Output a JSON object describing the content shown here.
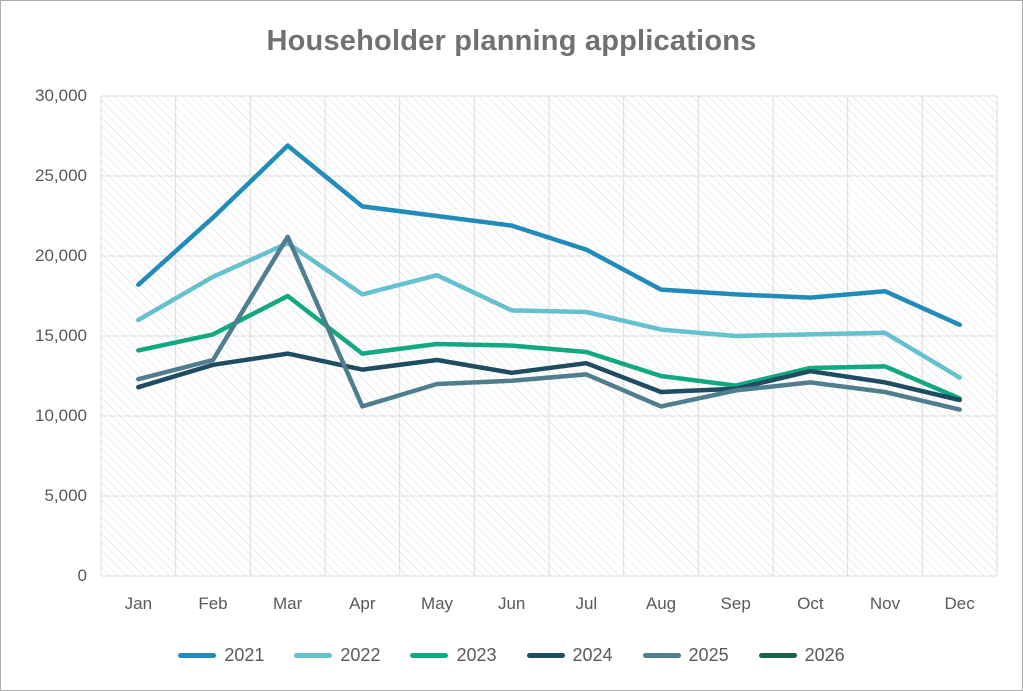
{
  "chart_data": {
    "type": "line",
    "title": "Householder planning applications",
    "categories": [
      "Jan",
      "Feb",
      "Mar",
      "Apr",
      "May",
      "Jun",
      "Jul",
      "Aug",
      "Sep",
      "Oct",
      "Nov",
      "Dec"
    ],
    "series": [
      {
        "name": "2021",
        "color": "#218CBA",
        "values": [
          18200,
          22400,
          26900,
          23100,
          22500,
          21900,
          20400,
          17900,
          17600,
          17400,
          17800,
          15700
        ]
      },
      {
        "name": "2022",
        "color": "#65C1CF",
        "values": [
          16000,
          18700,
          20800,
          17600,
          18800,
          16600,
          16500,
          15400,
          15000,
          15100,
          15200,
          12400
        ]
      },
      {
        "name": "2023",
        "color": "#12A881",
        "values": [
          14100,
          15100,
          17500,
          13900,
          14500,
          14400,
          14000,
          12500,
          11900,
          13000,
          13100,
          11100
        ]
      },
      {
        "name": "2024",
        "color": "#1E4D61",
        "values": [
          11800,
          13200,
          13900,
          12900,
          13500,
          12700,
          13300,
          11500,
          11700,
          12800,
          12100,
          11000
        ]
      },
      {
        "name": "2025",
        "color": "#4F7E8E",
        "values": [
          12300,
          13500,
          21200,
          10600,
          12000,
          12200,
          12600,
          10600,
          11600,
          12100,
          11500,
          10400
        ]
      },
      {
        "name": "2026",
        "color": "#1A6149",
        "values": []
      }
    ],
    "ylim": [
      0,
      30000
    ],
    "ytick_step": 5000,
    "ytick_labels": [
      "0",
      "5,000",
      "10,000",
      "15,000",
      "20,000",
      "25,000",
      "30,000"
    ],
    "xlabel": "",
    "ylabel": "",
    "grid": "horizontal and vertical, light gray, hatched plot background",
    "legend_position": "bottom",
    "line_width": 4.5,
    "text_color": "#595959",
    "title_color": "#717171",
    "gridline_color": "#dcdcdc"
  }
}
